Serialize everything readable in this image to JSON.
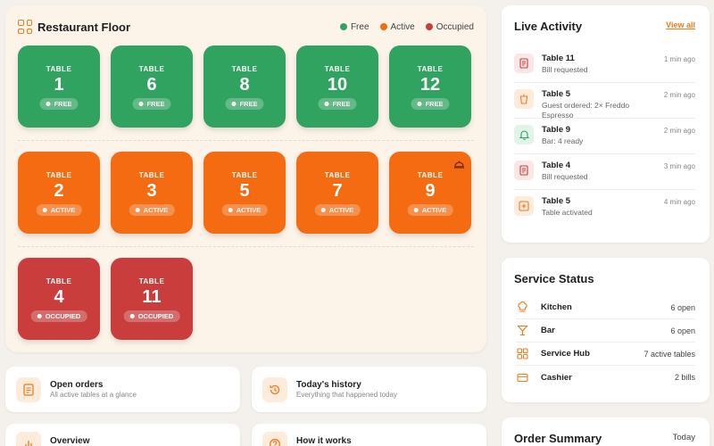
{
  "floor": {
    "title": "Restaurant Floor",
    "legend": [
      {
        "label": "Free",
        "color": "#2fa35f"
      },
      {
        "label": "Active",
        "color": "#f46b12"
      },
      {
        "label": "Occupied",
        "color": "#c93d3d"
      }
    ],
    "table_label": "TABLE",
    "rows": [
      [
        {
          "number": "1",
          "status": "free",
          "badge": "FREE"
        },
        {
          "number": "6",
          "status": "free",
          "badge": "FREE"
        },
        {
          "number": "8",
          "status": "free",
          "badge": "FREE"
        },
        {
          "number": "10",
          "status": "free",
          "badge": "FREE"
        },
        {
          "number": "12",
          "status": "free",
          "badge": "FREE"
        }
      ],
      [
        {
          "number": "2",
          "status": "active",
          "badge": "ACTIVE"
        },
        {
          "number": "3",
          "status": "active",
          "badge": "ACTIVE"
        },
        {
          "number": "5",
          "status": "active",
          "badge": "ACTIVE"
        },
        {
          "number": "7",
          "status": "active",
          "badge": "ACTIVE"
        },
        {
          "number": "9",
          "status": "active",
          "badge": "ACTIVE",
          "bell": true
        }
      ],
      [
        {
          "number": "4",
          "status": "occupied",
          "badge": "OCCUPIED"
        },
        {
          "number": "11",
          "status": "occupied",
          "badge": "OCCUPIED"
        }
      ]
    ]
  },
  "quick_links": [
    {
      "title": "Open orders",
      "subtitle": "All active tables at a glance",
      "icon": "document-icon"
    },
    {
      "title": "Today's history",
      "subtitle": "Everything that happened today",
      "icon": "history-icon"
    },
    {
      "title": "Overview",
      "subtitle": "",
      "icon": "chart-icon"
    },
    {
      "title": "How it works",
      "subtitle": "",
      "icon": "help-icon"
    }
  ],
  "activity": {
    "title": "Live Activity",
    "view_all": "View all",
    "items": [
      {
        "title": "Table 11",
        "desc": "Bill requested",
        "time": "1 min ago",
        "tone": "red",
        "icon": "receipt-icon"
      },
      {
        "title": "Table 5",
        "desc": "Guest ordered: 2× Freddo Espresso",
        "time": "2 min ago",
        "tone": "orange",
        "icon": "cup-icon"
      },
      {
        "title": "Table 9",
        "desc": "Bar: 4 ready",
        "time": "2 min ago",
        "tone": "green",
        "icon": "bell-icon"
      },
      {
        "title": "Table 4",
        "desc": "Bill requested",
        "time": "3 min ago",
        "tone": "red",
        "icon": "receipt-icon"
      },
      {
        "title": "Table 5",
        "desc": "Table activated",
        "time": "4 min ago",
        "tone": "orange",
        "icon": "plus-square-icon"
      }
    ]
  },
  "service": {
    "title": "Service Status",
    "items": [
      {
        "name": "Kitchen",
        "value": "6 open",
        "icon": "chef-hat-icon"
      },
      {
        "name": "Bar",
        "value": "6 open",
        "icon": "cocktail-icon"
      },
      {
        "name": "Service Hub",
        "value": "7 active tables",
        "icon": "grid-icon"
      },
      {
        "name": "Cashier",
        "value": "2 bills",
        "icon": "card-icon"
      }
    ]
  },
  "summary": {
    "title": "Order Summary",
    "period": "Today"
  },
  "colors": {
    "accent": "#f07a1e",
    "free": "#2fa35f",
    "active": "#f46b12",
    "occupied": "#c93d3d"
  }
}
